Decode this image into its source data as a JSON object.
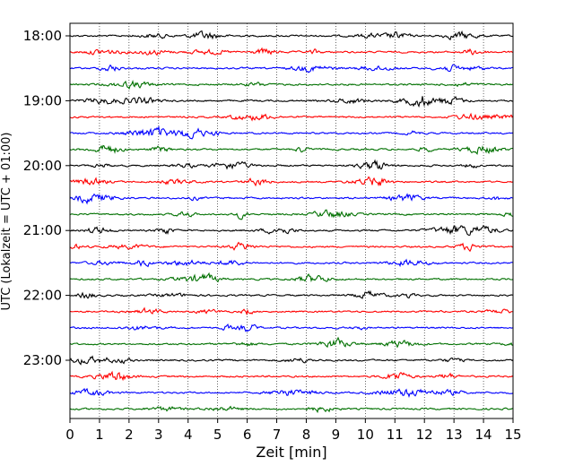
{
  "chart_data": {
    "type": "line",
    "subtype": "helicorder",
    "title": "",
    "xlabel": "Zeit  [min]",
    "ylabel": "UTC (Lokalzeit = UTC + 01:00)",
    "xlim": [
      0,
      15
    ],
    "x_ticks": [
      0,
      1,
      2,
      3,
      4,
      5,
      6,
      7,
      8,
      9,
      10,
      11,
      12,
      13,
      14,
      15
    ],
    "y_ticks": [
      "18:00",
      "19:00",
      "20:00",
      "21:00",
      "22:00",
      "23:00"
    ],
    "x_grid": "dotted vertical",
    "y_grid": false,
    "trace_interval_min": 15,
    "trace_start": "18:00",
    "trace_count": 24,
    "trace_colors": [
      "#000000",
      "#ff0000",
      "#0000ff",
      "#007000"
    ]
  }
}
